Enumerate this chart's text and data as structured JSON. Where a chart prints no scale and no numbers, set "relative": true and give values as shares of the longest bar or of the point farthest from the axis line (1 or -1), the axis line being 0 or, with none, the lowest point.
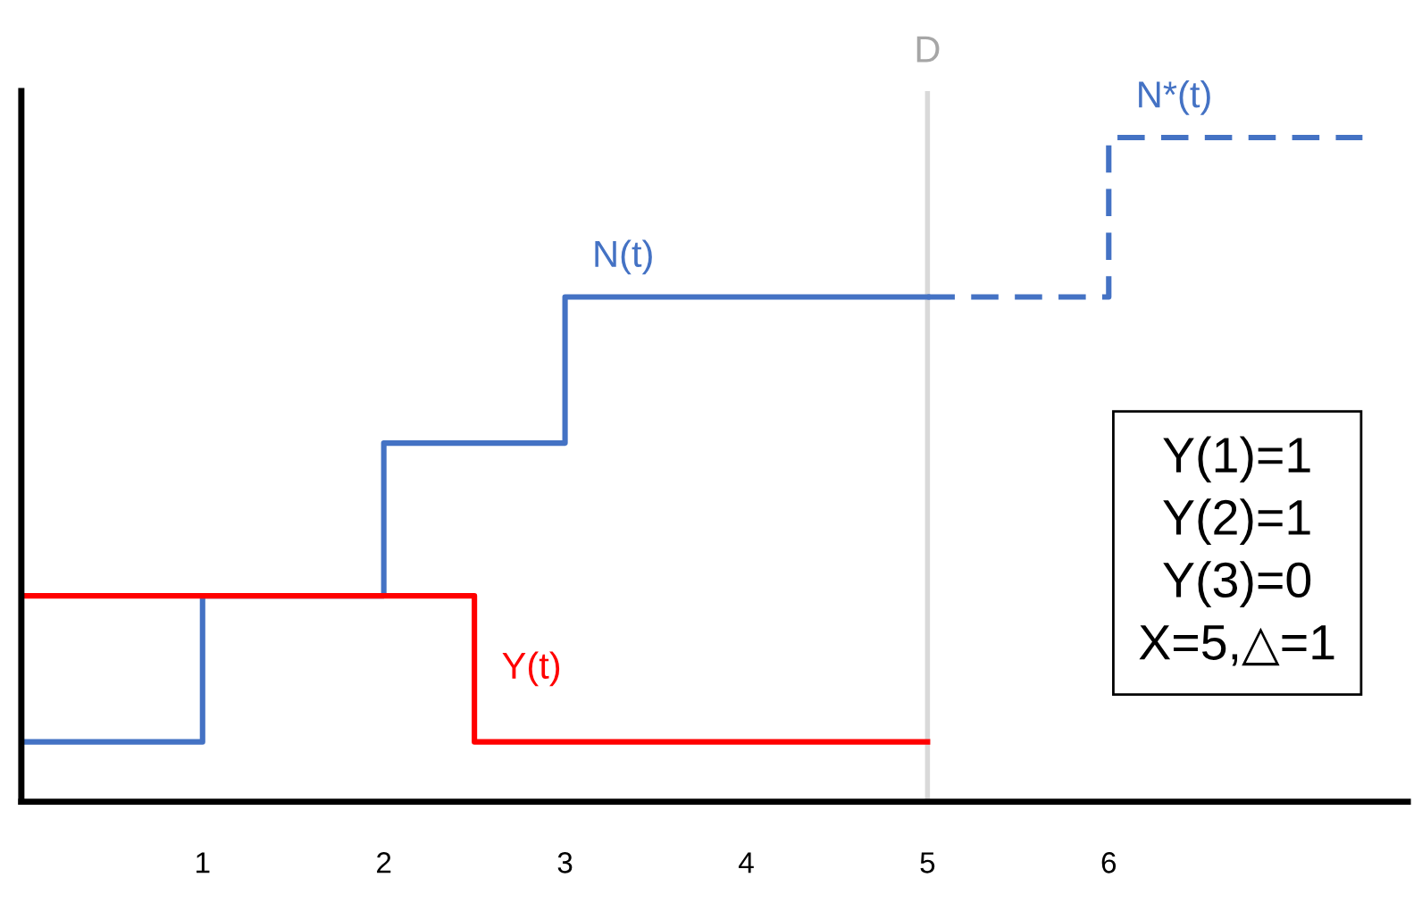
{
  "chart_data": {
    "type": "step",
    "relative": true,
    "xlim": [
      0,
      7.65
    ],
    "xticks": [
      1,
      2,
      3,
      4,
      5,
      6
    ],
    "series": [
      {
        "name": "N(t)",
        "color": "#4472c4",
        "line_style": "solid",
        "x": [
          0,
          1,
          2,
          3,
          5
        ],
        "values": [
          0.09,
          0.31,
          0.54,
          0.76,
          0.76
        ]
      },
      {
        "name": "N*(t)",
        "color": "#4472c4",
        "line_style": "dashed",
        "x": [
          5,
          6,
          7.4
        ],
        "values": [
          0.76,
          1,
          1
        ]
      },
      {
        "name": "Y(t)",
        "color": "#ff0000",
        "line_style": "solid",
        "x": [
          0,
          2.5,
          5
        ],
        "values": [
          0.31,
          0.09,
          0.09
        ]
      }
    ],
    "ref_lines": [
      {
        "axis": "x",
        "value": 5,
        "label": "D",
        "color": "#d9d9d9"
      }
    ],
    "annotations": [
      "Y(1)=1\nY(2)=1\nY(3)=0\nX=5,△=1"
    ],
    "grid": false,
    "legend": false
  }
}
